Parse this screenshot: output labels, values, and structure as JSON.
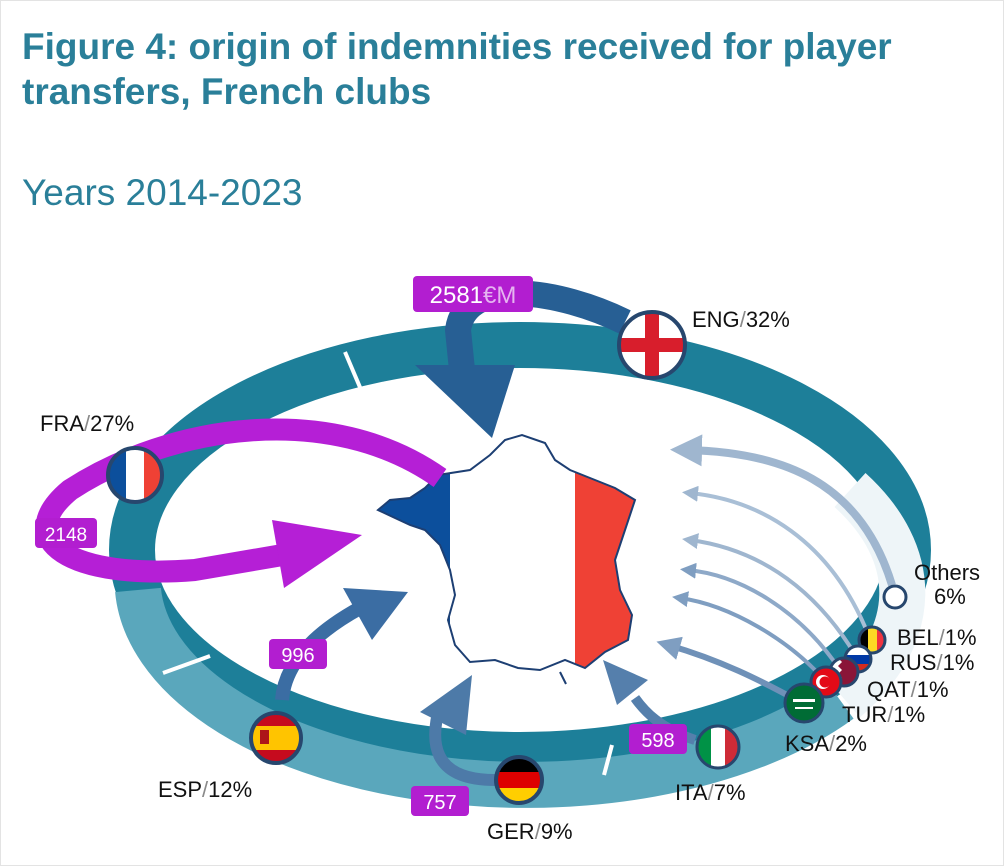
{
  "title": "Figure 4: origin of indemnities received for player transfers, French clubs",
  "subtitle": "Years 2014-2023",
  "colors": {
    "ring_dark": "#1d7f99",
    "ring_light": "#5aa7bc",
    "arrow_dark": "#275f94",
    "arrow_mid": "#4d7aa8",
    "arrow_light": "#9fb6cf",
    "magenta": "#b51fd6",
    "label_box": "#b21ed0",
    "france_blue": "#0c4f9c",
    "france_red": "#ef4135",
    "title": "#2a7f99"
  },
  "chart_data": {
    "type": "flow-map",
    "unit": "€M",
    "destination": "France",
    "origins": [
      {
        "code": "ENG",
        "share_pct": 32,
        "value_label": "2581",
        "value_unit": "€M",
        "flag": "england-flag"
      },
      {
        "code": "FRA",
        "share_pct": 27,
        "value_label": "2148",
        "flag": "france-flag"
      },
      {
        "code": "ESP",
        "share_pct": 12,
        "value_label": "996",
        "flag": "spain-flag"
      },
      {
        "code": "GER",
        "share_pct": 9,
        "value_label": "757",
        "flag": "germany-flag"
      },
      {
        "code": "ITA",
        "share_pct": 7,
        "value_label": "598",
        "flag": "italy-flag"
      },
      {
        "code": "KSA",
        "share_pct": 2,
        "flag": "saudi-arabia-flag"
      },
      {
        "code": "TUR",
        "share_pct": 1,
        "flag": "turkey-flag"
      },
      {
        "code": "QAT",
        "share_pct": 1,
        "flag": "qatar-flag"
      },
      {
        "code": "RUS",
        "share_pct": 1,
        "flag": "russia-flag"
      },
      {
        "code": "BEL",
        "share_pct": 1,
        "flag": "belgium-flag"
      },
      {
        "code": "Others",
        "share_pct": 6,
        "flag": "others-circle"
      }
    ],
    "labels": {
      "eng_code": "ENG",
      "eng_pct": "32%",
      "fra_code": "FRA",
      "fra_pct": "27%",
      "esp_code": "ESP",
      "esp_pct": "12%",
      "ger_code": "GER",
      "ger_pct": "9%",
      "ita_code": "ITA",
      "ita_pct": "7%",
      "ksa_code": "KSA",
      "ksa_pct": "2%",
      "tur_code": "TUR",
      "tur_pct": "1%",
      "qat_code": "QAT",
      "qat_pct": "1%",
      "rus_code": "RUS",
      "rus_pct": "1%",
      "bel_code": "BEL",
      "bel_pct": "1%",
      "oth_code": "Others",
      "oth_pct": "6%",
      "sep": "/"
    },
    "values": {
      "eng": "2581",
      "eng_unit": "€M",
      "fra": "2148",
      "esp": "996",
      "ger": "757",
      "ita": "598"
    }
  }
}
